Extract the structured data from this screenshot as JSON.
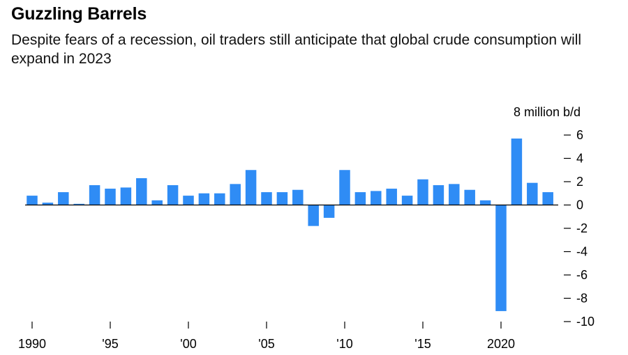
{
  "header": {
    "title": "Guzzling Barrels",
    "subtitle": "Despite fears of a recession, oil traders still anticipate that global crude consumption will expand in 2023"
  },
  "chart_data": {
    "type": "bar",
    "title": "Guzzling Barrels",
    "subtitle": "Despite fears of a recession, oil traders still anticipate that global crude consumption will expand in 2023",
    "ylabel": "8 million b/d",
    "ylim": [
      -10,
      6
    ],
    "yticks": [
      6,
      4,
      2,
      0,
      -2,
      -4,
      -6,
      -8,
      -10
    ],
    "ytick_labels": [
      "6",
      "4",
      "2",
      "0",
      "-2",
      "-4",
      "-6",
      "-8",
      "-10"
    ],
    "xticks": [
      1990,
      1995,
      2000,
      2005,
      2010,
      2015,
      2020
    ],
    "xtick_labels": [
      "1990",
      "'95",
      "'00",
      "'05",
      "'10",
      "'15",
      "2020"
    ],
    "bar_color": "#2f8cf5",
    "categories": [
      1990,
      1991,
      1992,
      1993,
      1994,
      1995,
      1996,
      1997,
      1998,
      1999,
      2000,
      2001,
      2002,
      2003,
      2004,
      2005,
      2006,
      2007,
      2008,
      2009,
      2010,
      2011,
      2012,
      2013,
      2014,
      2015,
      2016,
      2017,
      2018,
      2019,
      2020,
      2021,
      2022,
      2023
    ],
    "values": [
      0.8,
      0.2,
      1.1,
      0.1,
      1.7,
      1.4,
      1.5,
      2.3,
      0.4,
      1.7,
      0.8,
      1.0,
      1.0,
      1.8,
      3.0,
      1.1,
      1.1,
      1.3,
      -1.8,
      -1.1,
      3.0,
      1.1,
      1.2,
      1.4,
      0.8,
      2.2,
      1.7,
      1.8,
      1.3,
      0.4,
      -9.1,
      5.7,
      1.9,
      1.1
    ],
    "grid": false,
    "legend": false
  }
}
